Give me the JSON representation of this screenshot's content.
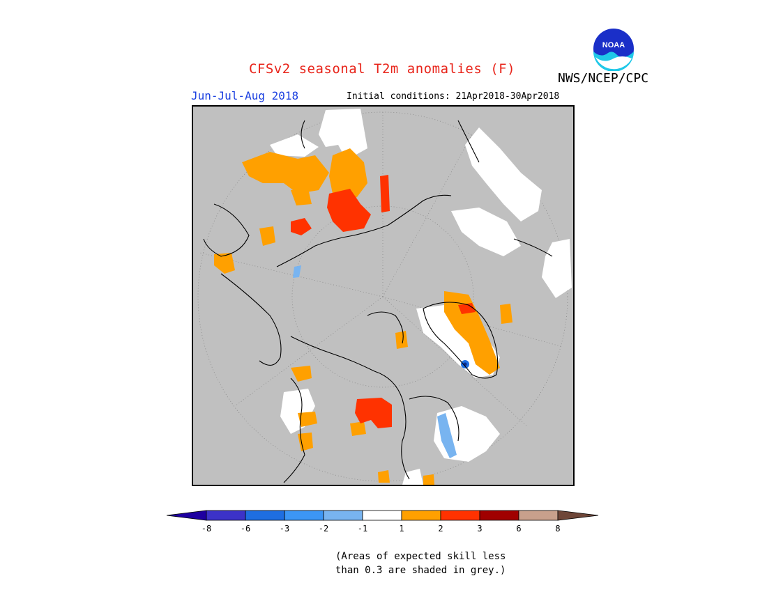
{
  "header": {
    "title": "CFSv2 seasonal T2m anomalies (F)",
    "period": "Jun-Jul-Aug 2018",
    "initial_conditions": "Initial conditions: 21Apr2018-30Apr2018",
    "agency": "NWS/NCEP/CPC",
    "logo_text": "NOAA"
  },
  "map": {
    "projection": "north polar stereographic",
    "skill_mask_color": "#c0c0c0"
  },
  "legend": {
    "min_arrow_color": "#1e00a0",
    "max_arrow_color": "#6e4638",
    "bins": [
      {
        "color": "#3c32c8"
      },
      {
        "color": "#1e6ee1"
      },
      {
        "color": "#3c96f5"
      },
      {
        "color": "#78b4f0"
      },
      {
        "color": "#ffffff"
      },
      {
        "color": "#ffa000"
      },
      {
        "color": "#ff3200"
      },
      {
        "color": "#a00000"
      },
      {
        "color": "#c8a08c"
      }
    ],
    "ticks": [
      "-8",
      "-6",
      "-3",
      "-2",
      "-1",
      "1",
      "2",
      "3",
      "6",
      "8"
    ]
  },
  "footnote": {
    "line1": "(Areas of expected skill less",
    "line2": "than 0.3 are shaded in grey.)"
  }
}
